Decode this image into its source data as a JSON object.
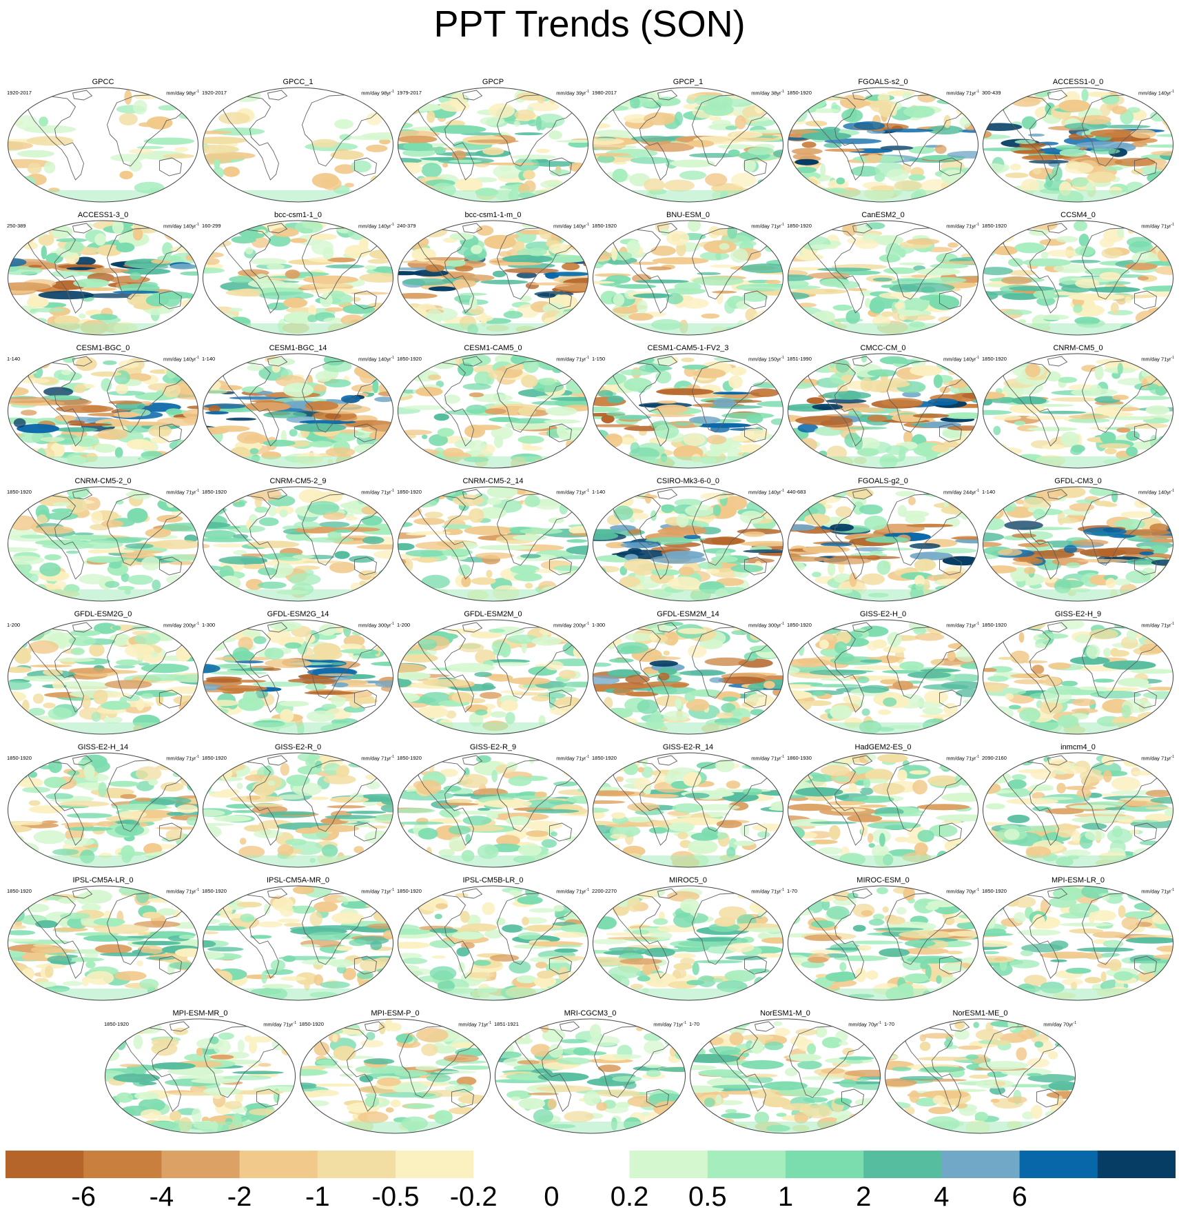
{
  "title": "PPT Trends (SON)",
  "panels": [
    {
      "name": "GPCC",
      "years": "1920-2017",
      "units": "mm/day 98yr",
      "pattern": "obs-sparse"
    },
    {
      "name": "GPCC_1",
      "years": "1920-2017",
      "units": "mm/day 98yr",
      "pattern": "obs-sparse"
    },
    {
      "name": "GPCP",
      "years": "1979-2017",
      "units": "mm/day 39yr",
      "pattern": "mixed"
    },
    {
      "name": "GPCP_1",
      "years": "1980-2017",
      "units": "mm/day 38yr",
      "pattern": "mixed"
    },
    {
      "name": "FGOALS-s2_0",
      "years": "1850-1920",
      "units": "mm/day 71yr",
      "pattern": "tropical-strong"
    },
    {
      "name": "ACCESS1-0_0",
      "years": "300-439",
      "units": "mm/day 140yr",
      "pattern": "tropical-strong"
    },
    {
      "name": "ACCESS1-3_0",
      "years": "250-389",
      "units": "mm/day 140yr",
      "pattern": "tropical-strong"
    },
    {
      "name": "bcc-csm1-1_0",
      "years": "160-299",
      "units": "mm/day 140yr",
      "pattern": "tropical"
    },
    {
      "name": "bcc-csm1-1-m_0",
      "years": "240-379",
      "units": "mm/day 140yr",
      "pattern": "tropical-strong"
    },
    {
      "name": "BNU-ESM_0",
      "years": "1850-1920",
      "units": "mm/day 71yr",
      "pattern": "tropical"
    },
    {
      "name": "CanESM2_0",
      "years": "1850-1920",
      "units": "mm/day 71yr",
      "pattern": "mixed"
    },
    {
      "name": "CCSM4_0",
      "years": "1850-1920",
      "units": "mm/day 71yr",
      "pattern": "mixed"
    },
    {
      "name": "CESM1-BGC_0",
      "years": "1-140",
      "units": "mm/day 140yr",
      "pattern": "tropical-strong"
    },
    {
      "name": "CESM1-BGC_14",
      "years": "1-140",
      "units": "mm/day 140yr",
      "pattern": "tropical-strong"
    },
    {
      "name": "CESM1-CAM5_0",
      "years": "1850-1920",
      "units": "mm/day 71yr",
      "pattern": "tropical"
    },
    {
      "name": "CESM1-CAM5-1-FV2_3",
      "years": "1-150",
      "units": "mm/day 150yr",
      "pattern": "tropical-strong"
    },
    {
      "name": "CMCC-CM_0",
      "years": "1851-1990",
      "units": "mm/day 140yr",
      "pattern": "tropical-strong"
    },
    {
      "name": "CNRM-CM5_0",
      "years": "1850-1920",
      "units": "mm/day 71yr",
      "pattern": "mixed"
    },
    {
      "name": "CNRM-CM5-2_0",
      "years": "1850-1920",
      "units": "mm/day 71yr",
      "pattern": "mixed"
    },
    {
      "name": "CNRM-CM5-2_9",
      "years": "1850-1920",
      "units": "mm/day 71yr",
      "pattern": "mixed"
    },
    {
      "name": "CNRM-CM5-2_14",
      "years": "1850-1920",
      "units": "mm/day 71yr",
      "pattern": "mixed"
    },
    {
      "name": "CSIRO-Mk3-6-0_0",
      "years": "1-140",
      "units": "mm/day 140yr",
      "pattern": "tropical-strong"
    },
    {
      "name": "FGOALS-g2_0",
      "years": "440-683",
      "units": "mm/day 244yr",
      "pattern": "tropical-strong"
    },
    {
      "name": "GFDL-CM3_0",
      "years": "1-140",
      "units": "mm/day 140yr",
      "pattern": "tropical-strong"
    },
    {
      "name": "GFDL-ESM2G_0",
      "years": "1-200",
      "units": "mm/day 200yr",
      "pattern": "tropical"
    },
    {
      "name": "GFDL-ESM2G_14",
      "years": "1-300",
      "units": "mm/day 300yr",
      "pattern": "tropical-strong"
    },
    {
      "name": "GFDL-ESM2M_0",
      "years": "1-200",
      "units": "mm/day 200yr",
      "pattern": "tropical"
    },
    {
      "name": "GFDL-ESM2M_14",
      "years": "1-300",
      "units": "mm/day 300yr",
      "pattern": "tropical-strong"
    },
    {
      "name": "GISS-E2-H_0",
      "years": "1850-1920",
      "units": "mm/day 71yr",
      "pattern": "tropical"
    },
    {
      "name": "GISS-E2-H_9",
      "years": "1850-1920",
      "units": "mm/day 71yr",
      "pattern": "tropical"
    },
    {
      "name": "GISS-E2-H_14",
      "years": "1850-1920",
      "units": "mm/day 71yr",
      "pattern": "tropical"
    },
    {
      "name": "GISS-E2-R_0",
      "years": "1850-1920",
      "units": "mm/day 71yr",
      "pattern": "tropical"
    },
    {
      "name": "GISS-E2-R_9",
      "years": "1850-1920",
      "units": "mm/day 71yr",
      "pattern": "tropical"
    },
    {
      "name": "GISS-E2-R_14",
      "years": "1850-1920",
      "units": "mm/day 71yr",
      "pattern": "tropical"
    },
    {
      "name": "HadGEM2-ES_0",
      "years": "1860-1930",
      "units": "mm/day 71yr",
      "pattern": "tropical"
    },
    {
      "name": "inmcm4_0",
      "years": "2090-2160",
      "units": "mm/day 71yr",
      "pattern": "mixed"
    },
    {
      "name": "IPSL-CM5A-LR_0",
      "years": "1850-1920",
      "units": "mm/day 71yr",
      "pattern": "tropical"
    },
    {
      "name": "IPSL-CM5A-MR_0",
      "years": "1850-1920",
      "units": "mm/day 71yr",
      "pattern": "tropical"
    },
    {
      "name": "IPSL-CM5B-LR_0",
      "years": "1850-1920",
      "units": "mm/day 71yr",
      "pattern": "tropical"
    },
    {
      "name": "MIROC5_0",
      "years": "2200-2270",
      "units": "mm/day 71yr",
      "pattern": "tropical"
    },
    {
      "name": "MIROC-ESM_0",
      "years": "1-70",
      "units": "mm/day 70yr",
      "pattern": "tropical"
    },
    {
      "name": "MPI-ESM-LR_0",
      "years": "1850-1920",
      "units": "mm/day 71yr",
      "pattern": "tropical"
    },
    {
      "name": "MPI-ESM-MR_0",
      "years": "1850-1920",
      "units": "mm/day 71yr",
      "pattern": "tropical"
    },
    {
      "name": "MPI-ESM-P_0",
      "years": "1850-1920",
      "units": "mm/day 71yr",
      "pattern": "tropical"
    },
    {
      "name": "MRI-CGCM3_0",
      "years": "1851-1921",
      "units": "mm/day 71yr",
      "pattern": "tropical"
    },
    {
      "name": "NorESM1-M_0",
      "years": "1-70",
      "units": "mm/day 70yr",
      "pattern": "tropical"
    },
    {
      "name": "NorESM1-ME_0",
      "years": "1-70",
      "units": "mm/day 70yr",
      "pattern": "tropical"
    }
  ],
  "units_superscript": "-1",
  "colorbar": {
    "colors": [
      "#b5652a",
      "#c9803f",
      "#dca164",
      "#f1c98b",
      "#f2dea3",
      "#fbf0c0",
      "#ffffff",
      "#ffffff",
      "#d5f7cf",
      "#a6edbd",
      "#7bdcae",
      "#56bd9e",
      "#72a8c7",
      "#0867a8",
      "#053d64"
    ],
    "labels": [
      "-6",
      "-4",
      "-2",
      "-1",
      "-0.5",
      "-0.2",
      "0",
      "0.2",
      "0.5",
      "1",
      "2",
      "4",
      "6"
    ]
  }
}
